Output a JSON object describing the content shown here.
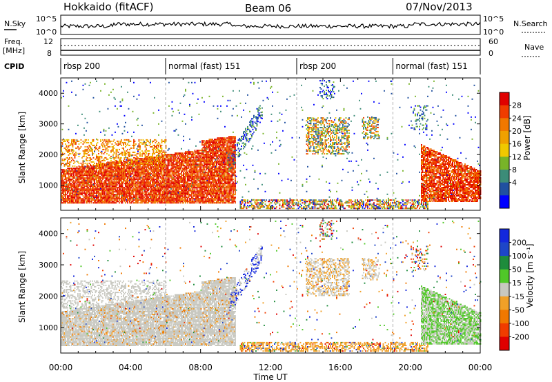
{
  "header": {
    "station": "Hokkaido (fitACF)",
    "beam": "Beam 06",
    "date": "07/Nov/2013"
  },
  "small_panels": {
    "nsky_label": "N.Sky",
    "nsky_ticks": [
      "10^5",
      "10^0"
    ],
    "nsearch_label": "N.Search",
    "freq_label_1": "Freq.",
    "freq_label_2": "[MHz]",
    "freq_ticks": [
      "12",
      "8"
    ],
    "nave_label": "Nave",
    "nave_ticks": [
      "60",
      "0"
    ],
    "cpid_label": "CPID",
    "cpid_segments": [
      {
        "label": "rbsp 200",
        "start_hour": 0.0
      },
      {
        "label": "normal (fast) 151",
        "start_hour": 6.0
      },
      {
        "label": "rbsp 200",
        "start_hour": 13.5
      },
      {
        "label": "normal (fast) 151",
        "start_hour": 19.0
      }
    ]
  },
  "colors": {
    "power_scale": [
      "#0000ff",
      "#2050a0",
      "#3c8c78",
      "#78b428",
      "#f0c800",
      "#f0a000",
      "#f07800",
      "#f03c00",
      "#e00000"
    ],
    "velocity_scale": [
      "#1428dc",
      "#1e46c8",
      "#1e8c3c",
      "#50c828",
      "#c8c8c0",
      "#f0a028",
      "#f07800",
      "#f03c00",
      "#e00000"
    ]
  },
  "chart_data": [
    {
      "type": "heatmap",
      "quantity": "power",
      "ylabel": "Slant Range [km]",
      "ylim": [
        180,
        4500
      ],
      "yticks": [
        "1000",
        "2000",
        "3000",
        "4000"
      ],
      "xlim_hours": [
        0,
        24
      ],
      "colorbar_label": "Power [dB]",
      "colorbar_ticks": [
        "28",
        "24",
        "20",
        "16",
        "12",
        "8",
        "4"
      ],
      "colorbar_range": [
        0,
        30
      ]
    },
    {
      "type": "heatmap",
      "quantity": "velocity",
      "ylabel": "Slant Range [km]",
      "ylim": [
        180,
        4500
      ],
      "yticks": [
        "1000",
        "2000",
        "3000",
        "4000"
      ],
      "xlim_hours": [
        0,
        24
      ],
      "colorbar_label": "Velocity [m s⁻¹]",
      "colorbar_ticks": [
        "200",
        "100",
        "50",
        "15",
        "-15",
        "-50",
        "-100",
        "-200"
      ]
    }
  ],
  "x_axis": {
    "label": "Time UT",
    "ticks": [
      "00:00",
      "04:00",
      "08:00",
      "12:00",
      "16:00",
      "20:00",
      "00:00"
    ]
  }
}
